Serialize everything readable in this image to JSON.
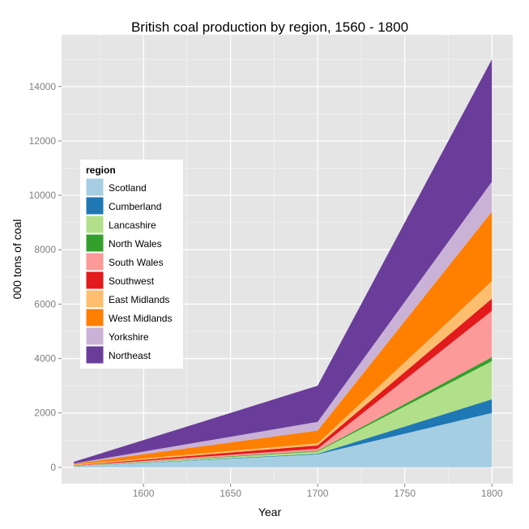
{
  "chart_data": {
    "type": "area",
    "stacked": true,
    "title": "British coal production by region, 1560 - 1800",
    "xlabel": "Year",
    "ylabel": "000 tons of coal",
    "x": [
      1560,
      1700,
      1800
    ],
    "xlim": [
      1553,
      1812
    ],
    "ylim": [
      -600,
      15900
    ],
    "xticks": [
      1600,
      1650,
      1700,
      1750,
      1800
    ],
    "yticks": [
      0,
      2000,
      4000,
      6000,
      8000,
      10000,
      12000,
      14000
    ],
    "grid": true,
    "legend": {
      "title": "region",
      "position": "left"
    },
    "series": [
      {
        "name": "Scotland",
        "color": "#a6cee3",
        "values": [
          30,
          475,
          2000
        ]
      },
      {
        "name": "Cumberland",
        "color": "#1f78b4",
        "values": [
          2,
          25,
          500
        ]
      },
      {
        "name": "Lancashire",
        "color": "#b2df8a",
        "values": [
          8,
          80,
          1400
        ]
      },
      {
        "name": "North Wales",
        "color": "#33a02c",
        "values": [
          5,
          25,
          150
        ]
      },
      {
        "name": "South Wales",
        "color": "#fb9a99",
        "values": [
          15,
          80,
          1700
        ]
      },
      {
        "name": "Southwest",
        "color": "#e31a1c",
        "values": [
          10,
          120,
          450
        ]
      },
      {
        "name": "East Midlands",
        "color": "#fdbf6f",
        "values": [
          30,
          75,
          650
        ]
      },
      {
        "name": "West Midlands",
        "color": "#ff7f00",
        "values": [
          30,
          470,
          2550
        ]
      },
      {
        "name": "Yorkshire",
        "color": "#cab2d6",
        "values": [
          10,
          320,
          1100
        ]
      },
      {
        "name": "Northeast",
        "color": "#6a3d9a",
        "values": [
          60,
          1330,
          4500
        ]
      }
    ]
  }
}
